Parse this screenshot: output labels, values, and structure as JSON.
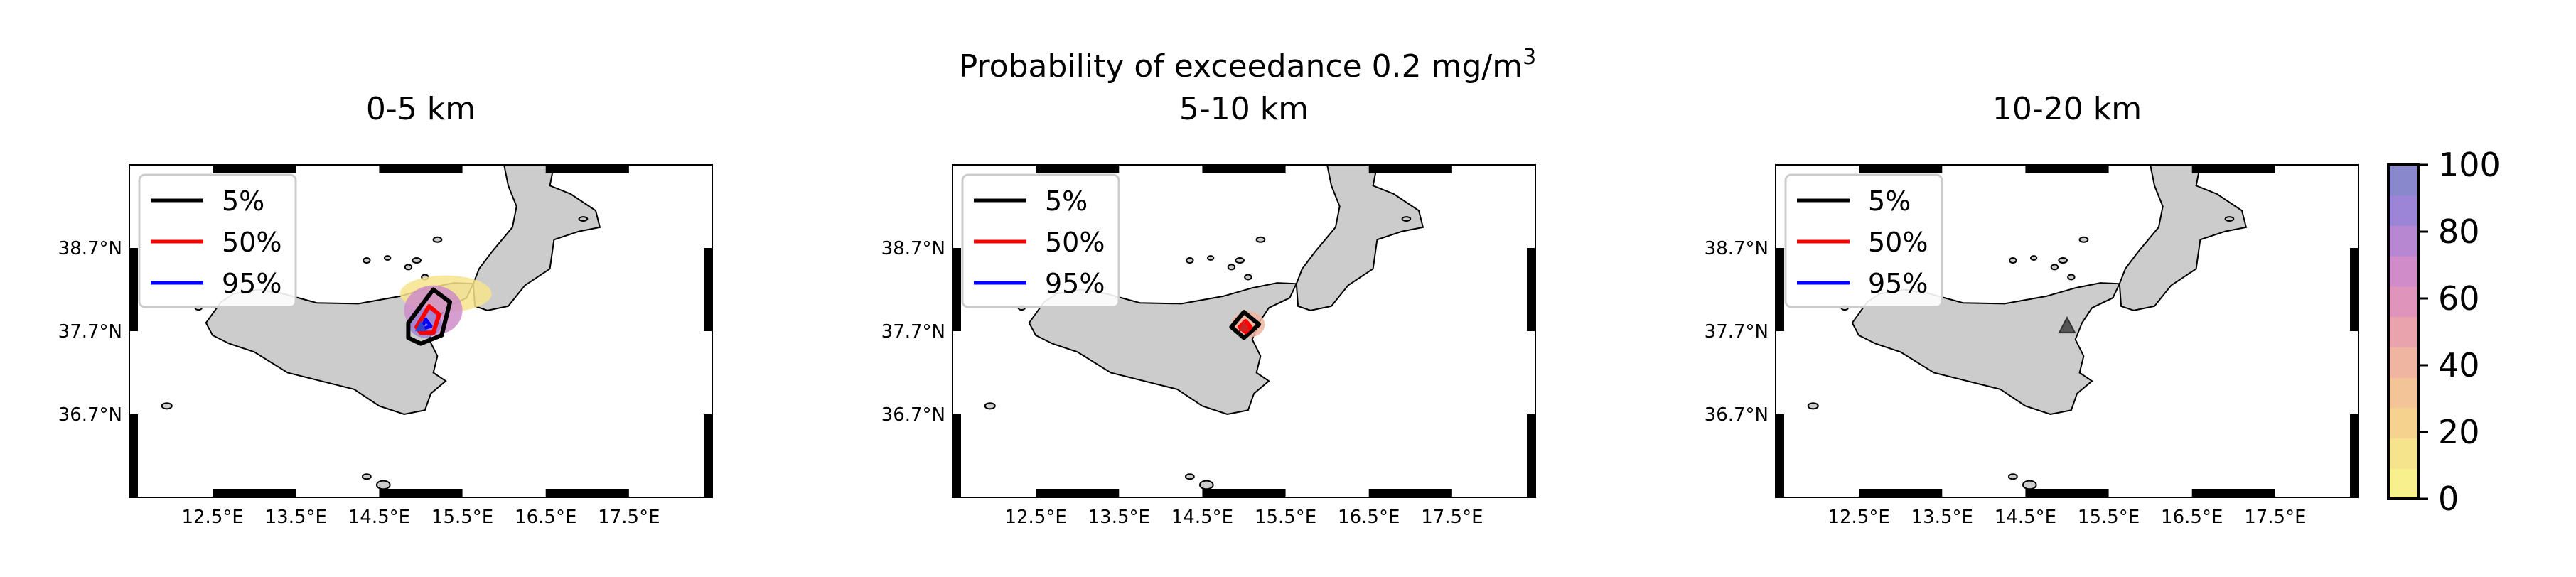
{
  "chart_data": {
    "type": "heatmap",
    "suptitle": "Probability of exceedance 0.2 mg/m",
    "suptitle_superscript": "3",
    "map_extent": {
      "lon": [
        11.5,
        18.5
      ],
      "lat": [
        35.7,
        39.7
      ]
    },
    "x_ticks": [
      "12.5°E",
      "13.5°E",
      "14.5°E",
      "15.5°E",
      "16.5°E",
      "17.5°E"
    ],
    "x_tick_values": [
      12.5,
      13.5,
      14.5,
      15.5,
      16.5,
      17.5
    ],
    "y_ticks": [
      "38.7°N",
      "37.7°N",
      "36.7°N"
    ],
    "y_tick_values": [
      38.7,
      37.7,
      36.7
    ],
    "legend": [
      {
        "label": "5%",
        "color": "#000000"
      },
      {
        "label": "50%",
        "color": "#ff0000"
      },
      {
        "label": "95%",
        "color": "#0000ff"
      }
    ],
    "colorbar": {
      "ticks": [
        "0",
        "20",
        "40",
        "60",
        "80",
        "100"
      ],
      "tick_values": [
        0,
        20,
        40,
        60,
        80,
        100
      ],
      "range": [
        0,
        100
      ],
      "colors": [
        "#f7f08c",
        "#f6e48c",
        "#f5d38f",
        "#f2c497",
        "#efb5a0",
        "#e8a3ad",
        "#df95bb",
        "#cf8cc8",
        "#b787d2",
        "#9c85d6",
        "#8a88cc"
      ]
    },
    "vent": {
      "lon": 15.0,
      "lat": 37.75
    },
    "panels": [
      {
        "title": "0-5 km",
        "zones": [
          {
            "lon": 15.3,
            "lat": 38.15,
            "rx": 0.55,
            "ry": 0.22,
            "value": 15
          },
          {
            "lon": 15.15,
            "lat": 37.95,
            "rx": 0.35,
            "ry": 0.3,
            "value": 70
          },
          {
            "lon": 15.05,
            "lat": 37.8,
            "rx": 0.2,
            "ry": 0.18,
            "value": 90
          }
        ],
        "contour_5": [
          [
            14.85,
            37.8
          ],
          [
            15.15,
            38.2
          ],
          [
            15.35,
            38.05
          ],
          [
            15.25,
            37.65
          ],
          [
            15.0,
            37.55
          ],
          [
            14.85,
            37.62
          ]
        ],
        "contour_50": [
          [
            14.95,
            37.75
          ],
          [
            15.1,
            38.0
          ],
          [
            15.22,
            37.9
          ],
          [
            15.15,
            37.68
          ],
          [
            15.0,
            37.68
          ]
        ],
        "contour_95": [
          [
            15.0,
            37.72
          ],
          [
            15.06,
            37.84
          ],
          [
            15.12,
            37.76
          ]
        ]
      },
      {
        "title": "5-10 km",
        "zones": [
          {
            "lon": 15.05,
            "lat": 37.78,
            "rx": 0.2,
            "ry": 0.16,
            "value": 40
          },
          {
            "lon": 15.02,
            "lat": 37.76,
            "rx": 0.06,
            "ry": 0.06,
            "value": 70
          }
        ],
        "contour_5": [
          [
            14.85,
            37.75
          ],
          [
            15.0,
            37.93
          ],
          [
            15.18,
            37.78
          ],
          [
            15.0,
            37.62
          ]
        ],
        "contour_50": [
          [
            14.95,
            37.75
          ],
          [
            15.02,
            37.82
          ],
          [
            15.08,
            37.75
          ],
          [
            15.02,
            37.69
          ]
        ],
        "contour_95": []
      },
      {
        "title": "10-20 km",
        "zones": [],
        "contour_5": [],
        "contour_50": [],
        "contour_95": []
      }
    ]
  }
}
